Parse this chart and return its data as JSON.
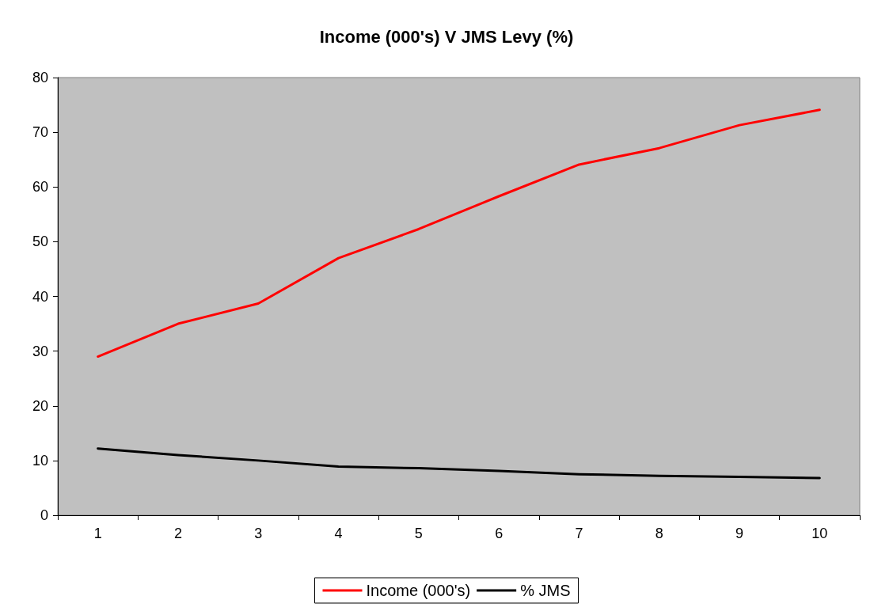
{
  "chart_data": {
    "type": "line",
    "title": "Income (000's) V JMS Levy (%)",
    "categories": [
      "1",
      "2",
      "3",
      "4",
      "5",
      "6",
      "7",
      "8",
      "9",
      "10"
    ],
    "series": [
      {
        "name": "Income (000's)",
        "color": "#ff0000",
        "values": [
          29,
          35,
          38.7,
          47,
          52.3,
          58.3,
          64.1,
          67.1,
          71.3,
          74.1
        ]
      },
      {
        "name": "% JMS",
        "color": "#000000",
        "values": [
          12.2,
          11,
          10,
          8.9,
          8.6,
          8.1,
          7.5,
          7.2,
          7,
          6.8
        ]
      }
    ],
    "ylim": [
      0,
      80
    ],
    "yticks": [
      0,
      10,
      20,
      30,
      40,
      50,
      60,
      70,
      80
    ],
    "grid": false,
    "legend": "bottom",
    "marker": "none",
    "line_style": "solid"
  }
}
